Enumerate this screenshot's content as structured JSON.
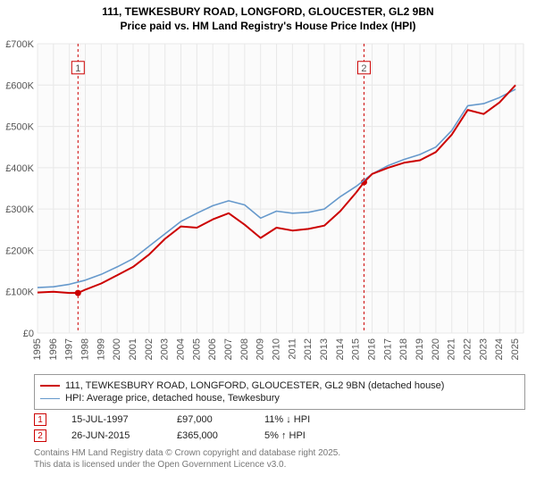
{
  "title_line1": "111, TEWKESBURY ROAD, LONGFORD, GLOUCESTER, GL2 9BN",
  "title_line2": "Price paid vs. HM Land Registry's House Price Index (HPI)",
  "chart": {
    "type": "line",
    "background_color": "#ffffff",
    "plot_background_color": "#fbfbfb",
    "grid_color": "#e8e8e8",
    "x_years": [
      1995,
      1996,
      1997,
      1998,
      1999,
      2000,
      2001,
      2002,
      2003,
      2004,
      2005,
      2006,
      2007,
      2008,
      2009,
      2010,
      2011,
      2012,
      2013,
      2014,
      2015,
      2016,
      2017,
      2018,
      2019,
      2020,
      2021,
      2022,
      2023,
      2024,
      2025
    ],
    "xlim": [
      1995,
      2025.5
    ],
    "ylim": [
      0,
      700000
    ],
    "ytick_step": 100000,
    "ytick_labels": [
      "£0",
      "£100K",
      "£200K",
      "£300K",
      "£400K",
      "£500K",
      "£600K",
      "£700K"
    ],
    "label_fontsize": 11,
    "series": [
      {
        "name": "hpi",
        "label": "HPI: Average price, detached house, Tewkesbury",
        "color": "#6699cc",
        "line_width": 1.6,
        "points": [
          [
            1995,
            110000
          ],
          [
            1996,
            112000
          ],
          [
            1997,
            118000
          ],
          [
            1998,
            128000
          ],
          [
            1999,
            142000
          ],
          [
            2000,
            160000
          ],
          [
            2001,
            180000
          ],
          [
            2002,
            210000
          ],
          [
            2003,
            240000
          ],
          [
            2004,
            270000
          ],
          [
            2005,
            290000
          ],
          [
            2006,
            308000
          ],
          [
            2007,
            320000
          ],
          [
            2008,
            310000
          ],
          [
            2009,
            278000
          ],
          [
            2010,
            295000
          ],
          [
            2011,
            290000
          ],
          [
            2012,
            292000
          ],
          [
            2013,
            300000
          ],
          [
            2014,
            330000
          ],
          [
            2015,
            355000
          ],
          [
            2016,
            385000
          ],
          [
            2017,
            405000
          ],
          [
            2018,
            420000
          ],
          [
            2019,
            432000
          ],
          [
            2020,
            450000
          ],
          [
            2021,
            490000
          ],
          [
            2022,
            550000
          ],
          [
            2023,
            555000
          ],
          [
            2024,
            570000
          ],
          [
            2025,
            590000
          ]
        ]
      },
      {
        "name": "price_paid",
        "label": "111, TEWKESBURY ROAD, LONGFORD, GLOUCESTER, GL2 9BN (detached house)",
        "color": "#cc0000",
        "line_width": 2,
        "points": [
          [
            1995,
            98000
          ],
          [
            1996,
            100000
          ],
          [
            1997,
            97000
          ],
          [
            1997.54,
            97000
          ],
          [
            1998,
            105000
          ],
          [
            1999,
            120000
          ],
          [
            2000,
            140000
          ],
          [
            2001,
            160000
          ],
          [
            2002,
            190000
          ],
          [
            2003,
            228000
          ],
          [
            2004,
            258000
          ],
          [
            2005,
            255000
          ],
          [
            2006,
            275000
          ],
          [
            2007,
            290000
          ],
          [
            2008,
            262000
          ],
          [
            2009,
            230000
          ],
          [
            2010,
            255000
          ],
          [
            2011,
            248000
          ],
          [
            2012,
            252000
          ],
          [
            2013,
            260000
          ],
          [
            2014,
            295000
          ],
          [
            2015,
            340000
          ],
          [
            2015.49,
            365000
          ],
          [
            2016,
            385000
          ],
          [
            2017,
            400000
          ],
          [
            2018,
            412000
          ],
          [
            2019,
            418000
          ],
          [
            2020,
            438000
          ],
          [
            2021,
            480000
          ],
          [
            2022,
            540000
          ],
          [
            2023,
            530000
          ],
          [
            2024,
            558000
          ],
          [
            2025,
            600000
          ]
        ]
      }
    ],
    "sale_markers": [
      {
        "index": 1,
        "x": 1997.54,
        "y": 97000,
        "color": "#cc0000",
        "label_y": 640000
      },
      {
        "index": 2,
        "x": 2015.49,
        "y": 365000,
        "color": "#cc0000",
        "label_y": 640000
      }
    ],
    "marker_line_color": "#cc0000",
    "marker_line_dash": "3,3"
  },
  "legend": {
    "rows": [
      {
        "color": "#cc0000",
        "width": 2,
        "label": "111, TEWKESBURY ROAD, LONGFORD, GLOUCESTER, GL2 9BN (detached house)"
      },
      {
        "color": "#6699cc",
        "width": 1.6,
        "label": "HPI: Average price, detached house, Tewkesbury"
      }
    ]
  },
  "sales": [
    {
      "index": "1",
      "color": "#cc0000",
      "date": "15-JUL-1997",
      "price": "£97,000",
      "delta": "11% ↓ HPI"
    },
    {
      "index": "2",
      "color": "#cc0000",
      "date": "26-JUN-2015",
      "price": "£365,000",
      "delta": "5% ↑ HPI"
    }
  ],
  "footer_line1": "Contains HM Land Registry data © Crown copyright and database right 2025.",
  "footer_line2": "This data is licensed under the Open Government Licence v3.0."
}
